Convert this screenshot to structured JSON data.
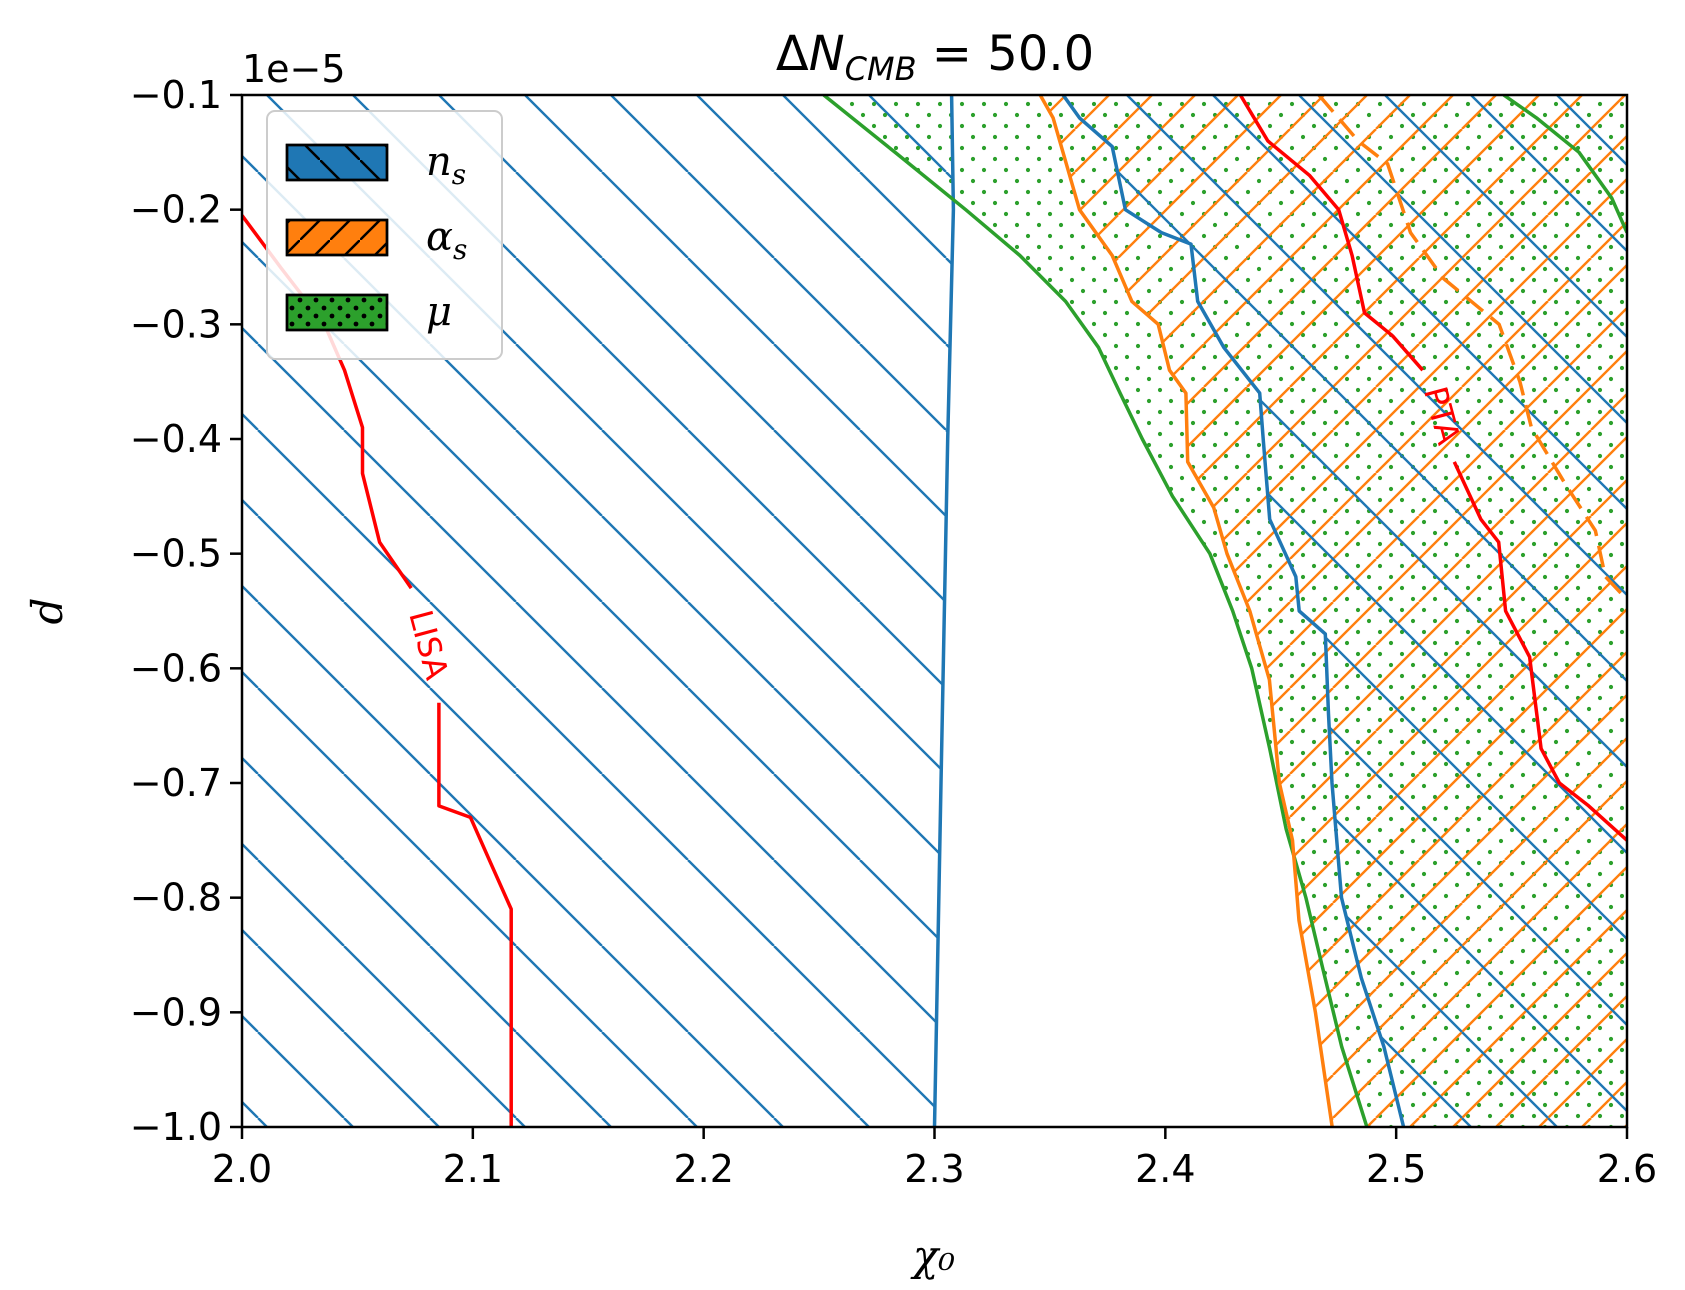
{
  "chart_data": {
    "type": "contour",
    "title": "ΔN_CMB = 50.0",
    "title_parts": {
      "delta": "Δ",
      "var": "N",
      "sub": "CMB",
      "rest": " = 50.0"
    },
    "xlabel": "χ₀",
    "ylabel": "d",
    "y_offset_label": "1e−5",
    "xlim": [
      2.0,
      2.6
    ],
    "ylim": [
      -1.0,
      -0.1
    ],
    "x_ticks": [
      2.0,
      2.1,
      2.2,
      2.3,
      2.4,
      2.5,
      2.6
    ],
    "x_tick_labels": [
      "2.0",
      "2.1",
      "2.2",
      "2.3",
      "2.4",
      "2.5",
      "2.6"
    ],
    "y_ticks": [
      -0.1,
      -0.2,
      -0.3,
      -0.4,
      -0.5,
      -0.6,
      -0.7,
      -0.8,
      -0.9,
      -1.0
    ],
    "y_tick_labels": [
      "−0.1",
      "−0.2",
      "−0.3",
      "−0.4",
      "−0.5",
      "−0.6",
      "−0.7",
      "−0.8",
      "−0.9",
      "−1.0"
    ],
    "legend": {
      "placement": "top-left",
      "entries": [
        {
          "label": "n_s",
          "main": "n",
          "sub": "s",
          "color": "#1f77b4",
          "hatch": "backslash"
        },
        {
          "label": "α_s",
          "main": "α",
          "sub": "s",
          "color": "#ff7f0e",
          "hatch": "slash"
        },
        {
          "label": "μ",
          "main": "μ",
          "sub": "",
          "color": "#2ca02c",
          "hatch": "dots"
        }
      ]
    },
    "series": [
      {
        "name": "n_s excluded (left)",
        "color": "#1f77b4",
        "hatch": "backslash",
        "boundary": [
          [
            2.3074,
            -0.1
          ],
          [
            2.3082,
            -0.2
          ],
          [
            2.3057,
            -0.4
          ],
          [
            2.3028,
            -0.7
          ],
          [
            2.3,
            -1.0
          ]
        ],
        "fill_side": "left"
      },
      {
        "name": "n_s excluded (right)",
        "color": "#1f77b4",
        "hatch": "backslash",
        "boundary": [
          [
            2.3557,
            -0.1
          ],
          [
            2.3628,
            -0.12
          ],
          [
            2.377,
            -0.145
          ],
          [
            2.3827,
            -0.2
          ],
          [
            2.3983,
            -0.22
          ],
          [
            2.4111,
            -0.23
          ],
          [
            2.414,
            -0.28
          ],
          [
            2.4253,
            -0.32
          ],
          [
            2.4409,
            -0.36
          ],
          [
            2.4424,
            -0.4
          ],
          [
            2.4452,
            -0.47
          ],
          [
            2.4565,
            -0.52
          ],
          [
            2.458,
            -0.55
          ],
          [
            2.4693,
            -0.57
          ],
          [
            2.4707,
            -0.64
          ],
          [
            2.4722,
            -0.7
          ],
          [
            2.4763,
            -0.8
          ],
          [
            2.4849,
            -0.87
          ],
          [
            2.4947,
            -0.93
          ],
          [
            2.5032,
            -1.0
          ]
        ],
        "fill_side": "right"
      },
      {
        "name": "α_s excluded",
        "color": "#ff7f0e",
        "hatch": "slash",
        "boundary": [
          [
            2.3458,
            -0.1
          ],
          [
            2.3514,
            -0.12
          ],
          [
            2.3628,
            -0.2
          ],
          [
            2.377,
            -0.24
          ],
          [
            2.3855,
            -0.28
          ],
          [
            2.3969,
            -0.3
          ],
          [
            2.4018,
            -0.34
          ],
          [
            2.4089,
            -0.36
          ],
          [
            2.4097,
            -0.42
          ],
          [
            2.421,
            -0.46
          ],
          [
            2.4267,
            -0.5
          ],
          [
            2.4366,
            -0.55
          ],
          [
            2.4451,
            -0.61
          ],
          [
            2.4494,
            -0.7
          ],
          [
            2.4551,
            -0.75
          ],
          [
            2.4579,
            -0.82
          ],
          [
            2.465,
            -0.9
          ],
          [
            2.4723,
            -1.0
          ]
        ],
        "fill_side": "right"
      },
      {
        "name": "α_s dashed",
        "color": "#ff7f0e",
        "style": "dashed",
        "boundary": [
          [
            2.4665,
            -0.1
          ],
          [
            2.4835,
            -0.14
          ],
          [
            2.4963,
            -0.16
          ],
          [
            2.5062,
            -0.22
          ],
          [
            2.5205,
            -0.26
          ],
          [
            2.5446,
            -0.3
          ],
          [
            2.5536,
            -0.35
          ],
          [
            2.5586,
            -0.39
          ],
          [
            2.5735,
            -0.44
          ],
          [
            2.5863,
            -0.48
          ],
          [
            2.5906,
            -0.52
          ],
          [
            2.6,
            -0.54
          ]
        ]
      },
      {
        "name": "μ excluded",
        "color": "#2ca02c",
        "hatch": "dots",
        "boundary": [
          [
            2.252,
            -0.1
          ],
          [
            2.2829,
            -0.15
          ],
          [
            2.3135,
            -0.2
          ],
          [
            2.337,
            -0.24
          ],
          [
            2.3568,
            -0.28
          ],
          [
            2.371,
            -0.32
          ],
          [
            2.3804,
            -0.36
          ],
          [
            2.39,
            -0.4
          ],
          [
            2.4031,
            -0.45
          ],
          [
            2.4193,
            -0.5
          ],
          [
            2.4292,
            -0.55
          ],
          [
            2.4374,
            -0.6
          ],
          [
            2.4452,
            -0.67
          ],
          [
            2.4523,
            -0.74
          ],
          [
            2.4609,
            -0.8
          ],
          [
            2.468,
            -0.86
          ],
          [
            2.4764,
            -0.93
          ],
          [
            2.4873,
            -1.0
          ]
        ],
        "fill_side": "right"
      },
      {
        "name": "μ right edge",
        "color": "#2ca02c",
        "boundary": [
          [
            2.5466,
            -0.1
          ],
          [
            2.5608,
            -0.12
          ],
          [
            2.5792,
            -0.15
          ],
          [
            2.5934,
            -0.19
          ],
          [
            2.6,
            -0.22
          ]
        ]
      },
      {
        "name": "LISA",
        "color": "#ff0000",
        "label": "LISA",
        "boundary": [
          [
            2.0,
            -0.205
          ],
          [
            2.0166,
            -0.25
          ],
          [
            2.0357,
            -0.3
          ],
          [
            2.0444,
            -0.34
          ],
          [
            2.0522,
            -0.39
          ],
          [
            2.0522,
            -0.43
          ],
          [
            2.0596,
            -0.49
          ],
          [
            2.0733,
            -0.53
          ]
        ],
        "boundary2": [
          [
            2.0853,
            -0.63
          ],
          [
            2.0853,
            -0.72
          ],
          [
            2.099,
            -0.73
          ],
          [
            2.1078,
            -0.77
          ],
          [
            2.1166,
            -0.81
          ],
          [
            2.1166,
            -1.0
          ]
        ]
      },
      {
        "name": "PTA",
        "color": "#ff0000",
        "label": "PTA",
        "boundary": [
          [
            2.4325,
            -0.1
          ],
          [
            2.4444,
            -0.14
          ],
          [
            2.4624,
            -0.17
          ],
          [
            2.4751,
            -0.2
          ],
          [
            2.4809,
            -0.24
          ],
          [
            2.4863,
            -0.29
          ],
          [
            2.4984,
            -0.31
          ],
          [
            2.5115,
            -0.34
          ]
        ],
        "boundary2": [
          [
            2.5252,
            -0.42
          ],
          [
            2.5367,
            -0.47
          ],
          [
            2.5444,
            -0.49
          ],
          [
            2.5474,
            -0.55
          ],
          [
            2.5578,
            -0.59
          ],
          [
            2.5628,
            -0.67
          ],
          [
            2.5707,
            -0.7
          ],
          [
            2.5834,
            -0.72
          ],
          [
            2.6,
            -0.75
          ]
        ]
      }
    ],
    "annotations": [
      {
        "text": "LISA",
        "x": 2.08,
        "y": -0.58,
        "rotation": "steep"
      },
      {
        "text": "PTA",
        "x": 2.519,
        "y": -0.38,
        "rotation": "steep"
      }
    ]
  }
}
